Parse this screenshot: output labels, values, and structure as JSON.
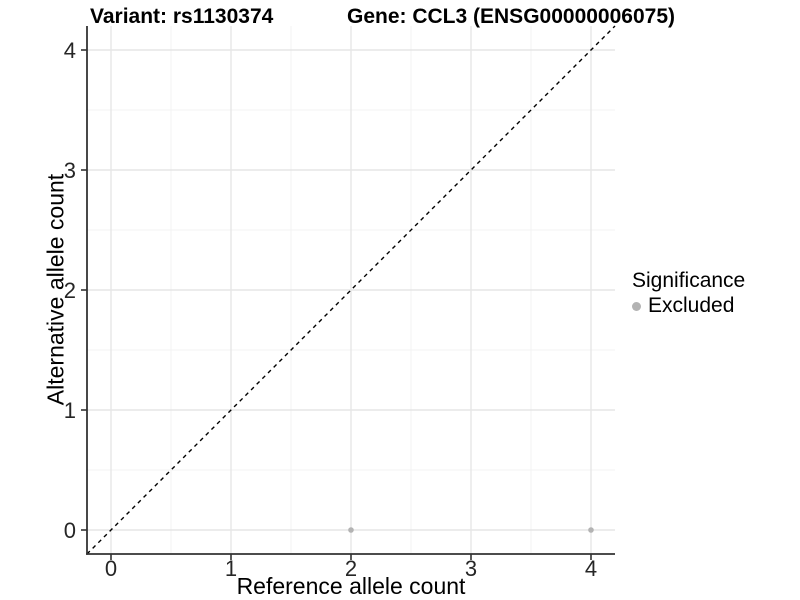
{
  "titles": {
    "variant": "Variant: rs1130374",
    "gene": "Gene: CCL3 (ENSG00000006075)"
  },
  "axes": {
    "x": {
      "label": "Reference allele count"
    },
    "y": {
      "label": "Alternative allele count"
    }
  },
  "legend": {
    "title": "Significance",
    "items": [
      {
        "label": "Excluded",
        "color": "#b3b3b3"
      }
    ]
  },
  "colors": {
    "panel_background": "#ffffff",
    "grid_major": "#e6e6e6",
    "grid_minor": "#f3f3f3",
    "axis_line": "#333333",
    "tick_text": "#262626",
    "reference_line": "#000000",
    "point": "#b3b3b3"
  },
  "chart_data": {
    "type": "scatter",
    "title": "Variant: rs1130374 | Gene: CCL3 (ENSG00000006075)",
    "xlabel": "Reference allele count",
    "ylabel": "Alternative allele count",
    "xlim": [
      -0.2,
      4.2
    ],
    "ylim": [
      -0.2,
      4.2
    ],
    "x_ticks": [
      0,
      1,
      2,
      3,
      4
    ],
    "y_ticks": [
      0,
      1,
      2,
      3,
      4
    ],
    "x_minor_ticks": [
      0.5,
      1.5,
      2.5,
      3.5
    ],
    "y_minor_ticks": [
      0.5,
      1.5,
      2.5,
      3.5
    ],
    "grid": "major+minor",
    "legend_position": "right",
    "series": [
      {
        "name": "Excluded",
        "color": "#b3b3b3",
        "points": [
          {
            "x": 2,
            "y": 0
          },
          {
            "x": 4,
            "y": 0
          }
        ]
      }
    ],
    "reference_line": {
      "type": "identity",
      "style": "dashed",
      "color": "#000000",
      "from": [
        -0.2,
        -0.2
      ],
      "to": [
        4.2,
        4.2
      ]
    }
  }
}
